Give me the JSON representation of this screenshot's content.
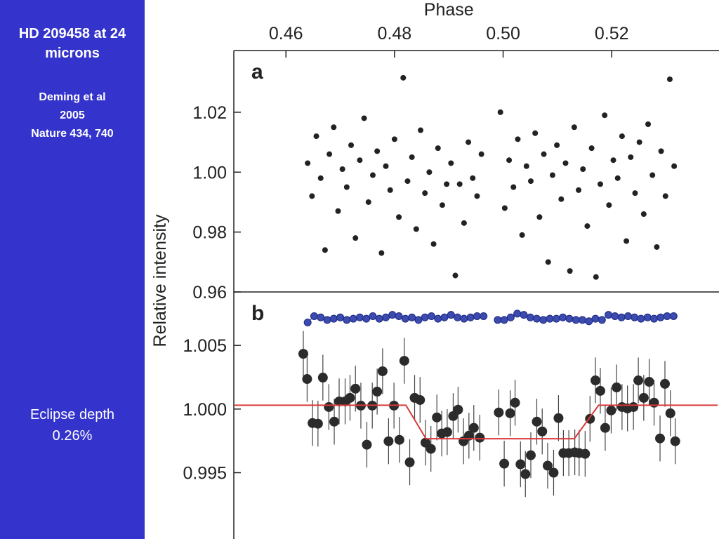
{
  "slide": {
    "title": "HD 209458 at 24 microns",
    "citation": [
      "Deming et al",
      "2005",
      "Nature 434, 740"
    ],
    "note": [
      "Eclipse depth",
      "0.26%"
    ]
  },
  "chart_data": [
    {
      "type": "scatter",
      "panel_label": "a",
      "xlabel": "Phase",
      "ylabel": "Relative intensity",
      "xlim": [
        0.4504,
        0.5395
      ],
      "xticks": [
        0.46,
        0.48,
        {
          "value": 0.5,
          "label": "0.50"
        },
        0.52
      ],
      "ylim": [
        0.96,
        1.0406
      ],
      "yticks": [
        {
          "value": 0.96,
          "label": "0.96"
        },
        {
          "value": 0.98,
          "label": "0.98"
        },
        {
          "value": 1.0,
          "label": "1.00"
        },
        {
          "value": 1.02,
          "label": "1.02"
        }
      ],
      "series": [
        {
          "color": "#222222",
          "marker": true,
          "line": false,
          "x": [
            0.464,
            0.4648,
            0.4656,
            0.4664,
            0.4672,
            0.468,
            0.4688,
            0.4696,
            0.4704,
            0.4712,
            0.472,
            0.4728,
            0.4736,
            0.4744,
            0.4752,
            0.476,
            0.4768,
            0.4776,
            0.4784,
            0.4792,
            0.48,
            0.4808,
            0.4816,
            0.4824,
            0.4832,
            0.484,
            0.4848,
            0.4856,
            0.4864,
            0.4872,
            0.488,
            0.4888,
            0.4896,
            0.4904,
            0.4912,
            0.492,
            0.4928,
            0.4936,
            0.4944,
            0.4952,
            0.496,
            0.4995,
            0.5003,
            0.5011,
            0.5019,
            0.5027,
            0.5035,
            0.5043,
            0.5051,
            0.5059,
            0.5067,
            0.5075,
            0.5083,
            0.5091,
            0.5099,
            0.5107,
            0.5115,
            0.5123,
            0.5131,
            0.5139,
            0.5147,
            0.5155,
            0.5163,
            0.5171,
            0.5179,
            0.5187,
            0.5195,
            0.5203,
            0.5211,
            0.5219,
            0.5227,
            0.5235,
            0.5243,
            0.5251,
            0.5259,
            0.5267,
            0.5275,
            0.5283,
            0.5291,
            0.5299,
            0.5307,
            0.5315
          ],
          "values": [
            1.003,
            0.992,
            1.012,
            0.998,
            0.974,
            1.006,
            1.015,
            0.987,
            1.001,
            0.995,
            1.009,
            0.978,
            1.004,
            1.018,
            0.99,
            0.999,
            1.007,
            0.973,
            1.002,
            0.994,
            1.011,
            0.985,
            1.0315,
            0.997,
            1.005,
            0.981,
            1.014,
            0.993,
            1.0,
            0.976,
            1.008,
            0.989,
            0.996,
            1.003,
            0.9655,
            0.996,
            0.983,
            1.01,
            0.998,
            0.992,
            1.006,
            1.02,
            0.988,
            1.004,
            0.995,
            1.011,
            0.979,
            1.002,
            0.997,
            1.013,
            0.985,
            1.006,
            0.97,
            0.999,
            1.009,
            0.991,
            1.003,
            0.967,
            1.015,
            0.994,
            1.001,
            0.982,
            1.008,
            0.965,
            0.996,
            1.019,
            0.989,
            1.004,
            0.998,
            1.012,
            0.977,
            1.005,
            0.993,
            1.01,
            0.986,
            1.016,
            0.999,
            0.975,
            1.007,
            0.992,
            1.031,
            1.002
          ]
        }
      ]
    },
    {
      "type": "scatter",
      "panel_label": "b",
      "xlim": [
        0.4504,
        0.5395
      ],
      "ylim": [
        0.9899,
        1.0092
      ],
      "yticks": [
        0.995,
        {
          "value": 1.0,
          "label": "1.000"
        },
        1.005
      ],
      "series": [
        {
          "color": "#2b2b2b",
          "marker": true,
          "line": false,
          "error": 0.0018,
          "x": [
            0.4632,
            0.4639,
            0.4649,
            0.4659,
            0.4668,
            0.4679,
            0.4689,
            0.4698,
            0.4709,
            0.4718,
            0.4728,
            0.4738,
            0.4749,
            0.4759,
            0.4768,
            0.4778,
            0.4789,
            0.4799,
            0.4809,
            0.4818,
            0.4828,
            0.4837,
            0.4847,
            0.4857,
            0.4867,
            0.4878,
            0.4887,
            0.4897,
            0.4908,
            0.4917,
            0.4927,
            0.4937,
            0.4946,
            0.4957,
            0.4992,
            0.5002,
            0.5013,
            0.5022,
            0.5032,
            0.5041,
            0.5051,
            0.5062,
            0.5072,
            0.5082,
            0.5093,
            0.5102,
            0.5111,
            0.5121,
            0.5132,
            0.514,
            0.5151,
            0.516,
            0.517,
            0.5179,
            0.5188,
            0.5199,
            0.5209,
            0.5219,
            0.5229,
            0.524,
            0.5249,
            0.5259,
            0.5269,
            0.5278,
            0.5289,
            0.5298,
            0.5308,
            0.5317
          ],
          "values": [
            1.00434,
            1.00236,
            0.9989,
            0.99885,
            1.00247,
            1.00016,
            0.99901,
            1.0006,
            1.0006,
            1.00088,
            1.0016,
            1.00027,
            0.9972,
            1.00027,
            1.00137,
            1.00297,
            0.99747,
            1.00027,
            0.99758,
            1.00379,
            0.99582,
            1.00088,
            1.00071,
            0.99736,
            0.99687,
            0.99934,
            0.99808,
            0.99819,
            0.99945,
            0.99995,
            0.99747,
            0.99791,
            0.99852,
            0.99775,
            0.99973,
            0.99571,
            0.99967,
            1.0005,
            0.99566,
            0.99489,
            0.99637,
            0.99901,
            0.99824,
            0.99555,
            0.995,
            0.99929,
            0.99654,
            0.99654,
            0.9966,
            0.99654,
            0.99648,
            0.99923,
            1.00225,
            1.00143,
            0.99852,
            0.99989,
            1.0017,
            1.00016,
            1.00005,
            1.00016,
            1.00225,
            1.00088,
            1.00214,
            1.0005,
            0.99769,
            1.00198,
            0.99967,
            0.99747
          ]
        },
        {
          "color": "#d93a3a",
          "marker": false,
          "line": true,
          "x": [
            0.4504,
            0.4821,
            0.4858,
            0.5131,
            0.5176,
            0.5395
          ],
          "values": [
            1.0003,
            1.0003,
            0.99767,
            0.99767,
            1.0003,
            1.0003
          ]
        },
        {
          "color": "#3b4bb0",
          "marker": true,
          "line": true,
          "x": [
            0.464,
            0.4652,
            0.4664,
            0.4676,
            0.4688,
            0.47,
            0.4712,
            0.4724,
            0.4736,
            0.4748,
            0.476,
            0.4772,
            0.4784,
            0.4796,
            0.4808,
            0.482,
            0.4832,
            0.4844,
            0.4856,
            0.4868,
            0.488,
            0.4892,
            0.4904,
            0.4916,
            0.4928,
            0.494,
            0.4952,
            0.4964,
            0.4977,
            0.499,
            0.5002,
            0.5014,
            0.5026,
            0.5038,
            0.505,
            0.5062,
            0.5074,
            0.5086,
            0.5098,
            0.511,
            0.5122,
            0.5134,
            0.5146,
            0.5158,
            0.517,
            0.5182,
            0.5194,
            0.5206,
            0.5218,
            0.523,
            0.5242,
            0.5254,
            0.5266,
            0.5278,
            0.529,
            0.5302,
            0.5314
          ],
          "values": [
            1.0068,
            1.0073,
            1.0072,
            1.007,
            1.0071,
            1.0072,
            1.007,
            1.0071,
            1.0072,
            1.0071,
            1.0073,
            1.0071,
            1.0072,
            1.0074,
            1.0073,
            1.0071,
            1.0072,
            1.007,
            1.0072,
            1.0073,
            1.0071,
            1.0072,
            1.0074,
            1.0072,
            1.0071,
            1.0072,
            1.0073,
            1.0073,
            null,
            1.007,
            1.007,
            1.0072,
            1.0075,
            1.0074,
            1.0072,
            1.0071,
            1.007,
            1.0071,
            1.0071,
            1.0072,
            1.0071,
            1.007,
            1.007,
            1.0069,
            1.0071,
            1.007,
            1.0074,
            1.0073,
            1.0072,
            1.0073,
            1.0072,
            1.0071,
            1.0072,
            1.0071,
            1.0072,
            1.0073,
            1.0073
          ]
        }
      ]
    }
  ]
}
